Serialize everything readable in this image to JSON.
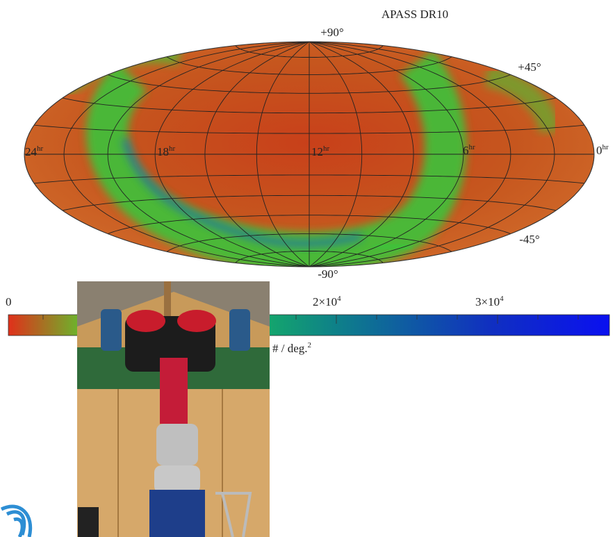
{
  "map": {
    "title": "APASS DR10",
    "lat_labels": [
      "+90°",
      "+45°",
      "-45°",
      "-90°"
    ],
    "ra_labels": [
      {
        "main": "24",
        "sup": "hr"
      },
      {
        "main": "18",
        "sup": "hr"
      },
      {
        "main": "12",
        "sup": "hr"
      },
      {
        "main": "6",
        "sup": "hr"
      },
      {
        "main": "0",
        "sup": "hr"
      }
    ]
  },
  "colorbar": {
    "tick_labels": [
      {
        "main": "0",
        "sup": ""
      },
      {
        "main": "2×10",
        "sup": "4"
      },
      {
        "main": "3×10",
        "sup": "4"
      }
    ],
    "unit": {
      "main": "# / deg.",
      "sup": "2"
    }
  }
}
